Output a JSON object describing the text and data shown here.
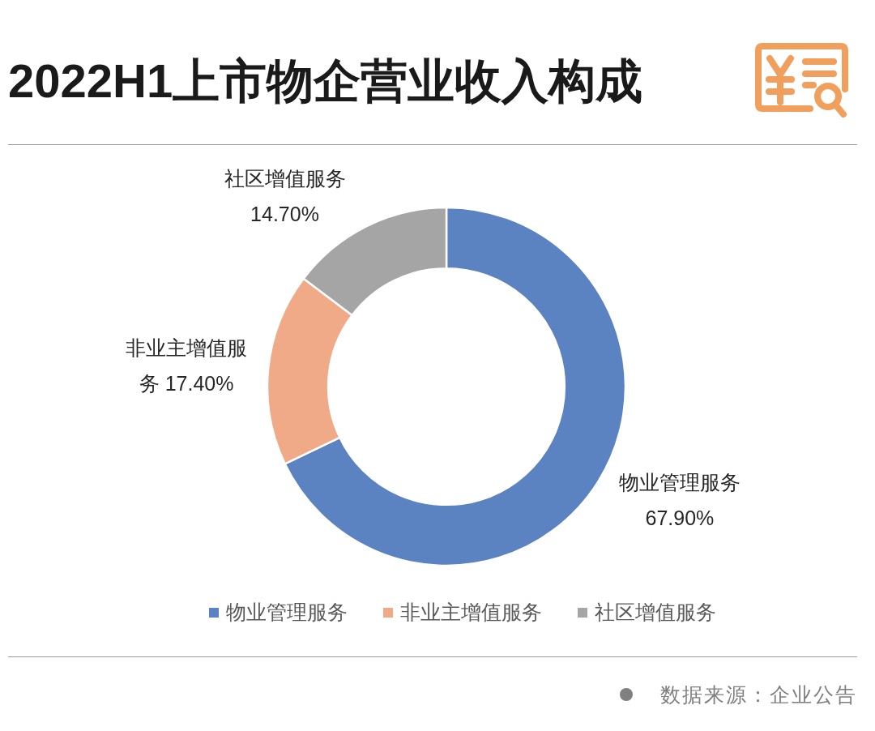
{
  "chart_data": {
    "type": "donut",
    "title": "2022H1上市物企营业收入构成",
    "categories": [
      "物业管理服务",
      "非业主增值服务",
      "社区增值服务"
    ],
    "values": [
      67.9,
      17.4,
      14.7
    ],
    "colors": [
      "#5b82c1",
      "#f0aa88",
      "#a5a5a5"
    ],
    "value_labels": [
      "67.90%",
      "17.40%",
      "14.70%"
    ],
    "legend": "bottom",
    "annotations": [
      "数据来源：企业公告"
    ]
  }
}
